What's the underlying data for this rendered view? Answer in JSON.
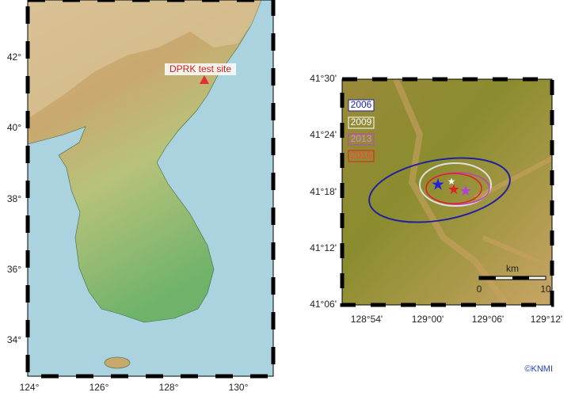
{
  "left_map": {
    "annotation": "DPRK test site",
    "lat_labels": [
      "42°",
      "40°",
      "38°",
      "36°",
      "34°"
    ],
    "lon_labels": [
      "124°",
      "126°",
      "128°",
      "130°"
    ]
  },
  "right_map": {
    "legend": [
      "2006",
      "2009",
      "2013",
      "2016"
    ],
    "lat_labels": [
      "41°30'",
      "41°24'",
      "41°18'",
      "41°12'",
      "41°06'"
    ],
    "lon_labels": [
      "128°54'",
      "129°00'",
      "129°06'",
      "129°12'"
    ],
    "scale_unit": "km",
    "scale_labels": [
      "0",
      "10"
    ]
  },
  "credit": "©KNMI"
}
